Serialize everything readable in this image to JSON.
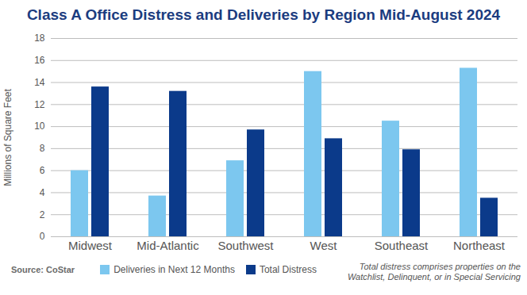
{
  "chart_data": {
    "type": "bar",
    "title": "Class A Office Distress and Deliveries by Region Mid-August 2024",
    "ylabel": "Millions of Square Feet",
    "source": "Source: CoStar",
    "note": "Total distress comprises properties on the Watchlist, Delinquent, or in Special Servicing",
    "categories": [
      "Midwest",
      "Mid-Atlantic",
      "Southwest",
      "West",
      "Southeast",
      "Northeast"
    ],
    "series": [
      {
        "name": "Deliveries in Next 12 Months",
        "color": "#7cc7ef",
        "values": [
          6.0,
          3.7,
          6.9,
          15.0,
          10.5,
          15.3
        ]
      },
      {
        "name": "Total Distress",
        "color": "#0b3a8a",
        "values": [
          13.6,
          13.2,
          9.7,
          8.9,
          7.9,
          3.5
        ]
      }
    ],
    "ylim": [
      0,
      18
    ],
    "yticks": [
      0,
      2,
      4,
      6,
      8,
      10,
      12,
      14,
      16,
      18
    ],
    "grid": true,
    "legend": "bottom"
  }
}
